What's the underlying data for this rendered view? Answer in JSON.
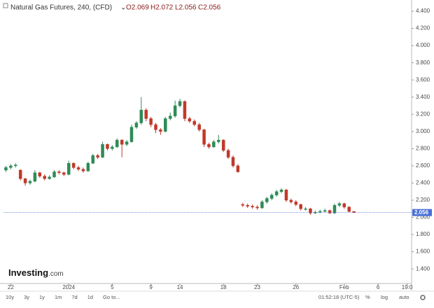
{
  "chart_data": {
    "type": "candlestick",
    "title": "Natural Gas Futures, 240, (CFD)",
    "ohlc_labels": [
      "O2.069",
      "H2.072",
      "L2.056",
      "C2.056"
    ],
    "open": [
      2.55,
      2.58,
      2.6,
      2.55,
      2.45,
      2.4,
      2.42,
      2.52,
      2.48,
      2.45,
      2.47,
      2.53,
      2.52,
      2.5,
      2.63,
      2.58,
      2.56,
      2.54,
      2.63,
      2.72,
      2.7,
      2.85,
      2.8,
      2.82,
      2.9,
      2.85,
      2.88,
      3.05,
      3.1,
      3.25,
      3.15,
      3.08,
      3.02,
      3.0,
      3.15,
      3.18,
      3.3,
      3.35,
      3.15,
      3.12,
      3.08,
      3.02,
      2.85,
      2.82,
      2.88,
      2.9,
      2.78,
      2.7,
      2.6,
      2.15,
      2.14,
      2.13,
      2.12,
      2.11,
      2.18,
      2.22,
      2.26,
      2.3,
      2.32,
      2.2,
      2.18,
      2.15,
      2.1,
      2.1,
      2.05,
      2.06,
      2.07,
      2.08,
      2.05,
      2.14,
      2.16,
      2.12,
      2.069
    ],
    "high": [
      2.6,
      2.62,
      2.63,
      2.56,
      2.46,
      2.44,
      2.55,
      2.53,
      2.5,
      2.49,
      2.55,
      2.55,
      2.53,
      2.66,
      2.64,
      2.6,
      2.58,
      2.65,
      2.74,
      2.74,
      2.88,
      2.86,
      2.84,
      2.92,
      2.91,
      2.9,
      3.08,
      3.12,
      3.4,
      3.27,
      3.17,
      3.1,
      3.04,
      3.17,
      3.22,
      3.36,
      3.38,
      3.36,
      3.17,
      3.14,
      3.1,
      3.03,
      2.87,
      2.9,
      2.96,
      2.91,
      2.8,
      2.72,
      2.62,
      2.17,
      2.16,
      2.15,
      2.14,
      2.2,
      2.24,
      2.28,
      2.32,
      2.34,
      2.33,
      2.22,
      2.2,
      2.16,
      2.12,
      2.11,
      2.08,
      2.09,
      2.1,
      2.09,
      2.16,
      2.18,
      2.17,
      2.13,
      2.072
    ],
    "low": [
      2.53,
      2.56,
      2.58,
      2.43,
      2.37,
      2.38,
      2.41,
      2.46,
      2.43,
      2.44,
      2.46,
      2.5,
      2.48,
      2.49,
      2.56,
      2.54,
      2.52,
      2.53,
      2.62,
      2.68,
      2.69,
      2.78,
      2.78,
      2.81,
      2.7,
      2.83,
      2.87,
      3.03,
      3.08,
      3.12,
      3.05,
      2.98,
      2.96,
      2.99,
      3.13,
      3.16,
      3.28,
      3.12,
      3.1,
      3.06,
      3.0,
      2.82,
      2.8,
      2.81,
      2.86,
      2.76,
      2.68,
      2.58,
      2.52,
      2.12,
      2.11,
      2.1,
      2.09,
      2.1,
      2.16,
      2.2,
      2.24,
      2.28,
      2.18,
      2.16,
      2.13,
      2.08,
      2.08,
      2.03,
      2.04,
      2.05,
      2.06,
      2.04,
      2.04,
      2.12,
      2.1,
      2.06,
      2.056
    ],
    "close": [
      2.58,
      2.6,
      2.61,
      2.45,
      2.4,
      2.42,
      2.52,
      2.48,
      2.45,
      2.47,
      2.53,
      2.52,
      2.5,
      2.63,
      2.58,
      2.56,
      2.54,
      2.63,
      2.72,
      2.7,
      2.85,
      2.8,
      2.82,
      2.9,
      2.85,
      2.88,
      3.05,
      3.1,
      3.25,
      3.15,
      3.08,
      3.02,
      3.0,
      3.15,
      3.18,
      3.3,
      3.35,
      3.15,
      3.12,
      3.08,
      3.02,
      2.85,
      2.82,
      2.88,
      2.9,
      2.78,
      2.7,
      2.6,
      2.53,
      2.14,
      2.13,
      2.12,
      2.11,
      2.18,
      2.22,
      2.26,
      2.3,
      2.32,
      2.2,
      2.18,
      2.15,
      2.1,
      2.1,
      2.05,
      2.06,
      2.07,
      2.08,
      2.05,
      2.14,
      2.16,
      2.12,
      2.069,
      2.056
    ],
    "up_color": "#2e8b57",
    "down_color": "#c0392b",
    "xlim": [
      -0.5,
      83.5
    ],
    "xticks": [
      {
        "value": 1,
        "label": "22"
      },
      {
        "value": 13,
        "label": "2024"
      },
      {
        "value": 22,
        "label": "5"
      },
      {
        "value": 30,
        "label": "9"
      },
      {
        "value": 36,
        "label": "14"
      },
      {
        "value": 45,
        "label": "18"
      },
      {
        "value": 52,
        "label": "23"
      },
      {
        "value": 60,
        "label": "26"
      },
      {
        "value": 70,
        "label": "Feb"
      },
      {
        "value": 77,
        "label": "6"
      },
      {
        "value": 83,
        "label": "19:0"
      }
    ],
    "ylim": [
      1.23,
      4.49
    ],
    "yticks": [
      {
        "value": 1.4,
        "label": "1.400"
      },
      {
        "value": 1.6,
        "label": "1.600"
      },
      {
        "value": 1.8,
        "label": "1.800"
      },
      {
        "value": 2.0,
        "label": "2.000"
      },
      {
        "value": 2.2,
        "label": "2.200"
      },
      {
        "value": 2.4,
        "label": "2.400"
      },
      {
        "value": 2.6,
        "label": "2.600"
      },
      {
        "value": 2.8,
        "label": "2.800"
      },
      {
        "value": 3.0,
        "label": "3.000"
      },
      {
        "value": 3.2,
        "label": "3.200"
      },
      {
        "value": 3.4,
        "label": "3.400"
      },
      {
        "value": 3.6,
        "label": "3.600"
      },
      {
        "value": 3.8,
        "label": "3.800"
      },
      {
        "value": 4.0,
        "label": "4.000"
      },
      {
        "value": 4.2,
        "label": "4.200"
      },
      {
        "value": 4.4,
        "label": "4.400"
      }
    ],
    "last_price": 2.056,
    "last_price_color": "#4a6fd8",
    "grid": false
  },
  "logo": {
    "name": "Investing",
    "suffix": ".com"
  },
  "toolbar": {
    "ranges": [
      "10y",
      "3y",
      "1y",
      "1m",
      "7d",
      "1d",
      "Go to..."
    ],
    "clock": "01:52:18 (UTC-5)",
    "options": [
      "%",
      "log",
      "auto"
    ]
  }
}
